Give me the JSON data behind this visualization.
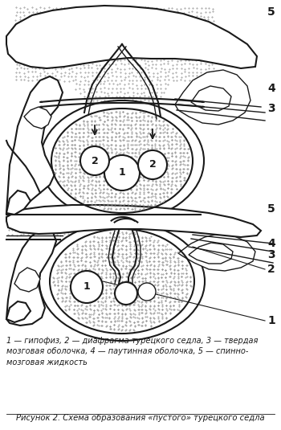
{
  "figure_caption": "Рисунок 2. Схема образования «пустого» турецкого седла",
  "legend_text": "1 — гипофиз, 2 — диафрагма турецкого седла, 3 — твердая\nмозговая оболочка, 4 — паутинная оболочка, 5 — спинно-\nмозговая жидкость",
  "bg_color": "#ffffff",
  "line_color": "#1a1a1a",
  "fig_width": 3.5,
  "fig_height": 5.35,
  "dpi": 100
}
